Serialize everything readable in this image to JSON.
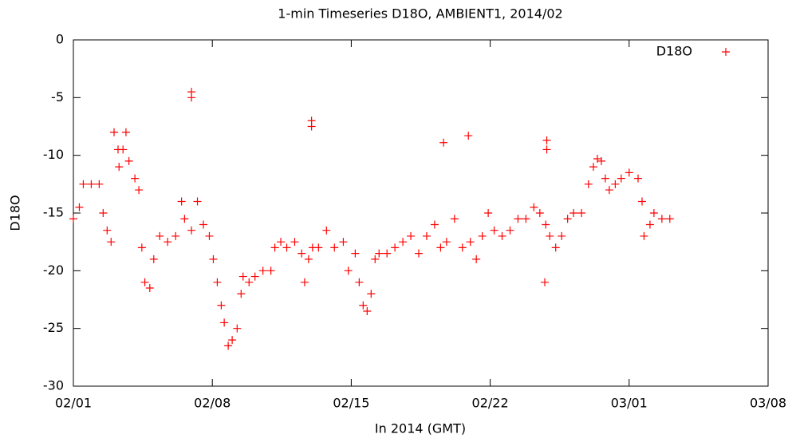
{
  "chart_data": {
    "type": "scatter",
    "title": "1-min Timeseries D18O, AMBIENT1, 2014/02",
    "x_label": "In 2014 (GMT)",
    "y_label": "D18O",
    "x": [
      0,
      0.3,
      0.5,
      0.9,
      1.3,
      1.5,
      1.7,
      1.9,
      2.05,
      2.25,
      2.3,
      2.5,
      2.65,
      2.8,
      3.1,
      3.3,
      3.45,
      3.6,
      3.85,
      4.05,
      4.35,
      4.75,
      5.15,
      5.45,
      5.6,
      5.95,
      5.95,
      5.95,
      6.25,
      6.55,
      6.85,
      7.05,
      7.25,
      7.45,
      7.6,
      7.8,
      8.0,
      8.25,
      8.45,
      8.55,
      8.85,
      9.15,
      9.55,
      9.95,
      10.15,
      10.45,
      10.75,
      11.15,
      11.5,
      11.65,
      11.85,
      12.0,
      12.0,
      12.05,
      12.35,
      12.75,
      13.15,
      13.6,
      13.85,
      14.2,
      14.4,
      14.6,
      14.8,
      15.0,
      15.2,
      15.4,
      15.8,
      16.2,
      16.6,
      17.0,
      17.4,
      17.8,
      18.2,
      18.5,
      18.65,
      18.8,
      19.2,
      19.6,
      19.9,
      20.0,
      20.3,
      20.6,
      20.9,
      21.2,
      21.6,
      22.0,
      22.4,
      22.8,
      23.2,
      23.5,
      23.75,
      23.8,
      23.85,
      23.85,
      24.0,
      24.3,
      24.6,
      24.9,
      25.2,
      25.6,
      25.95,
      26.2,
      26.4,
      26.6,
      26.8,
      27.0,
      27.3,
      27.6,
      28.0,
      28.45,
      28.65,
      28.75,
      29.05,
      29.25,
      29.65,
      30.05
    ],
    "series": [
      {
        "name": "D18O",
        "color": "#ff0000",
        "values": [
          -15.5,
          -14.5,
          -12.5,
          -12.5,
          -12.5,
          -15,
          -16.5,
          -17.5,
          -8,
          -9.5,
          -11,
          -9.5,
          -8,
          -10.5,
          -12,
          -13,
          -18,
          -21,
          -21.5,
          -19,
          -17,
          -17.5,
          -17,
          -14,
          -15.5,
          -16.5,
          -4.5,
          -5,
          -14,
          -16,
          -17,
          -19,
          -21,
          -23,
          -24.5,
          -26.5,
          -26,
          -25,
          -22,
          -20.5,
          -21,
          -20.5,
          -20,
          -20,
          -18,
          -17.5,
          -18,
          -17.5,
          -18.5,
          -21,
          -19,
          -7,
          -7.5,
          -18,
          -18,
          -16.5,
          -18,
          -17.5,
          -20,
          -18.5,
          -21,
          -23,
          -23.5,
          -22,
          -19,
          -18.5,
          -18.5,
          -18,
          -17.5,
          -17,
          -18.5,
          -17,
          -16,
          -18,
          -8.9,
          -17.5,
          -15.5,
          -18,
          -8.3,
          -17.5,
          -19,
          -17,
          -15,
          -16.5,
          -17,
          -16.5,
          -15.5,
          -15.5,
          -14.5,
          -15,
          -21,
          -16,
          -8.7,
          -9.5,
          -17,
          -18,
          -17,
          -15.5,
          -15,
          -15,
          -12.5,
          -11,
          -10.3,
          -10.5,
          -12,
          -13,
          -12.5,
          -12,
          -11.5,
          -12,
          -14,
          -17,
          -16,
          -15,
          -15.5,
          -15.5
        ]
      }
    ],
    "xlim": [
      0,
      35
    ],
    "xticks": [
      {
        "value": 0,
        "label": "02/01"
      },
      {
        "value": 7,
        "label": "02/08"
      },
      {
        "value": 14,
        "label": "02/15"
      },
      {
        "value": 21,
        "label": "02/22"
      },
      {
        "value": 28,
        "label": "03/01"
      },
      {
        "value": 35,
        "label": "03/08"
      }
    ],
    "ylim": [
      -30,
      0
    ],
    "yticks": [
      -30,
      -25,
      -20,
      -15,
      -10,
      -5,
      0
    ],
    "grid": false,
    "legend": "top right"
  }
}
